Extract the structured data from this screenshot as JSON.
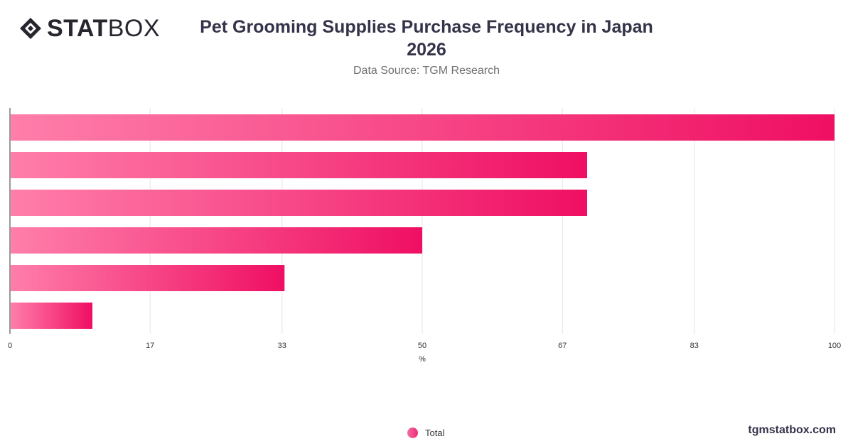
{
  "header": {
    "logo_bold": "STAT",
    "logo_light": "BOX",
    "title_line1": "Pet Grooming Supplies Purchase Frequency in Japan",
    "title_line2": "2026",
    "subtitle": "Data Source: TGM Research"
  },
  "footer": {
    "site": "tgmstatbox.com"
  },
  "colors": {
    "bar_start": "#ff7eaa",
    "bar_end": "#ef0f63",
    "grid": "#e4e4e4",
    "axis": "#333333"
  },
  "chart_data": {
    "type": "bar",
    "orientation": "horizontal",
    "title": "Pet Grooming Supplies Purchase Frequency in Japan 2026",
    "subtitle": "Data Source: TGM Research",
    "xlabel": "%",
    "xlim": [
      0,
      100
    ],
    "xticks": [
      0,
      17,
      33,
      50,
      67,
      83,
      100
    ],
    "grid": true,
    "legend": "bottom-center",
    "series": [
      {
        "name": "Total",
        "values": [
          100,
          70,
          70,
          50,
          33.3,
          10
        ]
      }
    ]
  }
}
